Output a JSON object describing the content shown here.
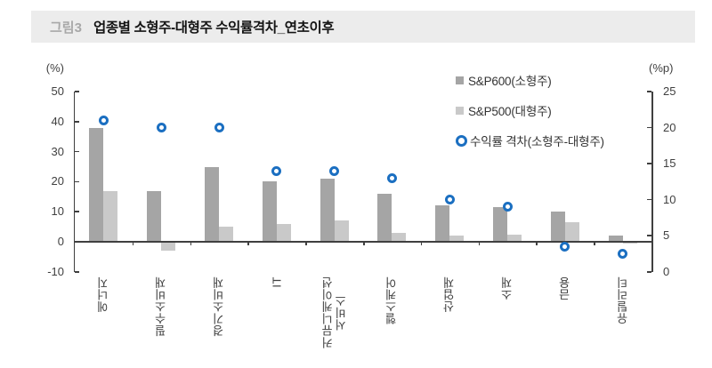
{
  "header": {
    "tag": "그림3",
    "title": "업종별 소형주-대형주 수익률격차_연초이후"
  },
  "chart_data": {
    "type": "bar",
    "subtype": "grouped bars (left axis) with scatter ring overlay (right axis)",
    "title": "업종별 소형주-대형주 수익률격차_연초이후",
    "categories": [
      "에너지",
      "필수소비재",
      "경기소비재",
      "IT",
      "커뮤니케이션 서비스",
      "헬스케어",
      "산업재",
      "소재",
      "금융",
      "유틸리티"
    ],
    "series": [
      {
        "name": "S&P600(소형주)",
        "type": "bar",
        "axis": "left",
        "color": "#a5a5a5",
        "values": [
          38,
          17,
          25,
          20,
          21,
          16,
          12,
          11.5,
          10,
          2
        ]
      },
      {
        "name": "S&P500(대형주)",
        "type": "bar",
        "axis": "left",
        "color": "#c9c9c9",
        "values": [
          17,
          -3,
          5,
          6,
          7,
          3,
          2,
          2.5,
          6.5,
          -0.5
        ]
      },
      {
        "name": "수익률 격차(소형주-대형주)",
        "type": "scatter",
        "axis": "right",
        "color": "#1b6fc1",
        "values": [
          21,
          20,
          20,
          14,
          14,
          13,
          10,
          9,
          3.5,
          2.5
        ]
      }
    ],
    "left_axis": {
      "label": "(%)",
      "min": -10,
      "max": 50,
      "ticks": [
        50,
        40,
        30,
        20,
        10,
        0,
        -10
      ]
    },
    "right_axis": {
      "label": "(%p)",
      "min": 0,
      "max": 25,
      "ticks": [
        25,
        20,
        15,
        10,
        5,
        0
      ]
    },
    "grid": false,
    "legend_position": "top-right"
  }
}
